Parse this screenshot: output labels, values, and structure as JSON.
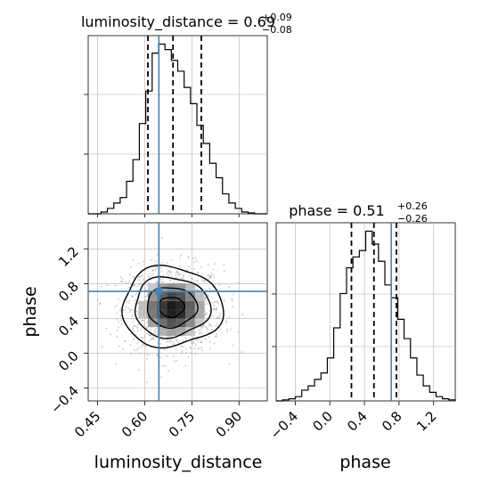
{
  "chart_data": {
    "type": "corner",
    "parameters": [
      "luminosity_distance",
      "phase"
    ],
    "titles": [
      {
        "base": "luminosity_distance = 0.69",
        "plus": "+0.09",
        "minus": "−0.08"
      },
      {
        "base": "phase = 0.51",
        "plus": "+0.26",
        "minus": "−0.26"
      }
    ],
    "axis_labels": {
      "x_left": "luminosity_distance",
      "x_right": "phase",
      "y_left": "phase"
    },
    "truth": {
      "luminosity_distance": 0.645,
      "phase": 0.71
    },
    "quantiles": {
      "luminosity_distance": [
        0.61,
        0.69,
        0.78
      ],
      "phase": [
        0.25,
        0.51,
        0.77
      ]
    },
    "hist_luminosity_distance": {
      "range": [
        0.42,
        0.99
      ],
      "counts": [
        0,
        0,
        1,
        3,
        6,
        9,
        18,
        30,
        50,
        68,
        89,
        94,
        91,
        85,
        79,
        70,
        61,
        49,
        39,
        28,
        20,
        11,
        6,
        3,
        1,
        0.5,
        0,
        0
      ]
    },
    "hist_phase": {
      "range": [
        -0.62,
        1.45
      ],
      "counts": [
        0,
        0.5,
        1,
        2,
        5,
        7,
        10,
        13,
        20,
        34,
        50,
        62,
        67,
        70,
        79,
        73,
        65,
        54,
        48,
        38,
        29,
        20,
        12,
        7,
        4,
        2,
        1,
        0.5
      ]
    },
    "scatter_2d": {
      "x_range": [
        0.42,
        0.99
      ],
      "y_range": [
        -0.55,
        1.5
      ],
      "xticks": [
        "0.45",
        "0.60",
        "0.75",
        "0.90"
      ],
      "yticks": [
        "−0.4",
        "0.0",
        "0.4",
        "0.8",
        "1.2"
      ]
    },
    "phase_xticks": [
      "−0.4",
      "0.0",
      "0.4",
      "0.8",
      "1.2"
    ],
    "grid": true,
    "colors": {
      "truth": "#4682b4",
      "hist": "#000000",
      "quantile": "#000000",
      "grid": "#b0b0b0",
      "points": "#9a9a9a"
    }
  }
}
